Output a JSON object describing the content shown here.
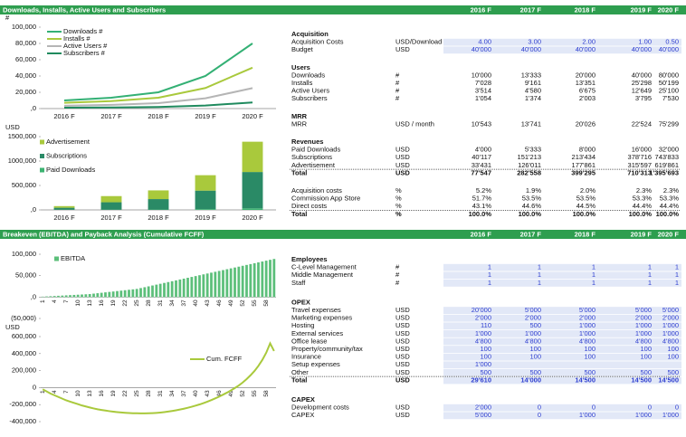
{
  "header": {
    "title": "Downloads, Installs, Active Users and Subscribers",
    "years": [
      "2016 F",
      "2017 F",
      "2018 F",
      "2019 F",
      "2020 F"
    ]
  },
  "bottom_header": {
    "title": "Breakeven (EBITDA) and Payback Analysis (Cumulative FCFF)",
    "years": [
      "2016 F",
      "2017 F",
      "2018 F",
      "2019 F",
      "2020 F"
    ]
  },
  "chart_data": [
    {
      "type": "line",
      "ylabel": "#",
      "categories": [
        "2016 F",
        "2017 F",
        "2018 F",
        "2019 F",
        "2020 F"
      ],
      "series": [
        {
          "name": "Downloads #",
          "color": "#33b074",
          "values": [
            10000,
            13333,
            20000,
            40000,
            80000
          ]
        },
        {
          "name": "Installs #",
          "color": "#a9c93c",
          "values": [
            7028,
            9161,
            13351,
            25298,
            50199
          ]
        },
        {
          "name": "Active Users #",
          "color": "#b5b5b5",
          "values": [
            3514,
            4580,
            6675,
            12649,
            25100
          ]
        },
        {
          "name": "Subscribers #",
          "color": "#1f8a5e",
          "values": [
            1054,
            1374,
            2003,
            3795,
            7530
          ]
        }
      ],
      "ylim": [
        0,
        100000
      ],
      "yticks": [
        {
          "value": 0,
          "label": ",0"
        },
        {
          "value": 20000,
          "label": "20,000"
        },
        {
          "value": 40000,
          "label": "40,000"
        },
        {
          "value": 60000,
          "label": "60,000"
        },
        {
          "value": 80000,
          "label": "80,000"
        },
        {
          "value": 100000,
          "label": "100,000"
        }
      ],
      "grid": false,
      "legend": "upper left"
    },
    {
      "type": "stacked_bar",
      "ylabel": "USD",
      "categories": [
        "2016 F",
        "2017 F",
        "2018 F",
        "2019 F",
        "2020 F"
      ],
      "series": [
        {
          "name": "Advertisement",
          "color": "#a9c93c",
          "values": [
            33431,
            126011,
            177861,
            315597,
            619861
          ]
        },
        {
          "name": "Subscriptions",
          "color": "#2a8a66",
          "values": [
            40117,
            151213,
            213434,
            378716,
            743833
          ]
        },
        {
          "name": "Paid Downloads",
          "color": "#3cb371",
          "values": [
            4000,
            5333,
            8000,
            16000,
            32000
          ]
        }
      ],
      "ylim": [
        0,
        1500000
      ],
      "yticks": [
        {
          "value": 0,
          "label": ",0"
        },
        {
          "value": 500000,
          "label": "500,000"
        },
        {
          "value": 1000000,
          "label": "1000,000"
        },
        {
          "value": 1500000,
          "label": "1500,000"
        }
      ],
      "grid": false,
      "legend": "upper left"
    },
    {
      "type": "bar",
      "categories": [
        "1",
        null,
        null,
        "4",
        null,
        null,
        "7",
        null,
        null,
        "10",
        null,
        null,
        "13",
        null,
        null,
        "16",
        null,
        null,
        "19",
        null,
        null,
        "22",
        null,
        null,
        "25",
        null,
        null,
        "28",
        null,
        null,
        "31",
        null,
        null,
        "34",
        null,
        null,
        "37",
        null,
        null,
        "40",
        null,
        null,
        "43",
        null,
        null,
        "46",
        null,
        null,
        "49",
        null,
        null,
        "52",
        null,
        null,
        "55",
        null,
        null,
        "58",
        null,
        null
      ],
      "series": [
        {
          "name": "EBITDA",
          "color": "#5cbf7a",
          "values": [
            1000,
            1500,
            2000,
            2500,
            3000,
            3500,
            4000,
            4500,
            5000,
            5500,
            6000,
            6500,
            7000,
            8000,
            9000,
            10000,
            11000,
            12000,
            13000,
            14000,
            15000,
            16000,
            17000,
            18000,
            19000,
            21000,
            23000,
            25000,
            27000,
            29000,
            31000,
            33000,
            35000,
            37000,
            39000,
            41000,
            43000,
            45000,
            47000,
            49000,
            51000,
            53000,
            55000,
            57000,
            59000,
            61000,
            63000,
            65000,
            67000,
            69000,
            71000,
            73000,
            75000,
            77000,
            79000,
            81000,
            83000,
            85000,
            87000,
            89000
          ]
        }
      ],
      "ylim": [
        -50000,
        100000
      ],
      "yticks": [
        {
          "value": -50000,
          "label": "(50,000)"
        },
        {
          "value": 0,
          "label": ",0"
        },
        {
          "value": 50000,
          "label": "50,000"
        },
        {
          "value": 100000,
          "label": "100,000"
        }
      ],
      "grid": false,
      "legend": "upper left"
    },
    {
      "type": "line",
      "ylabel": "USD",
      "categories": [
        "1",
        null,
        null,
        "4",
        null,
        null,
        "7",
        null,
        null,
        "10",
        null,
        null,
        "13",
        null,
        null,
        "16",
        null,
        null,
        "19",
        null,
        null,
        "22",
        null,
        null,
        "25",
        null,
        null,
        "28",
        null,
        null,
        "31",
        null,
        null,
        "34",
        null,
        null,
        "37",
        null,
        null,
        "40",
        null,
        null,
        "43",
        null,
        null,
        "46",
        null,
        null,
        "49",
        null,
        null,
        "52",
        null,
        null,
        "55",
        null,
        null,
        "58",
        null,
        null
      ],
      "series": [
        {
          "name": "Cum. FCFF",
          "color": "#a9c93c",
          "values": [
            -20000,
            -45000,
            -70000,
            -90000,
            -110000,
            -130000,
            -150000,
            -165000,
            -180000,
            -195000,
            -210000,
            -222000,
            -234000,
            -245000,
            -255000,
            -263000,
            -270000,
            -277000,
            -283000,
            -288000,
            -292000,
            -296000,
            -299000,
            -301000,
            -302000,
            -303000,
            -303000,
            -302000,
            -300000,
            -297000,
            -293000,
            -288000,
            -282000,
            -275000,
            -267000,
            -258000,
            -248000,
            -237000,
            -225000,
            -212000,
            -198000,
            -182000,
            -165000,
            -147000,
            -127000,
            -106000,
            -83000,
            -59000,
            -33000,
            -5000,
            25000,
            60000,
            100000,
            145000,
            195000,
            255000,
            325000,
            410000,
            520000,
            430000
          ]
        }
      ],
      "ylim": [
        -400000,
        600000
      ],
      "yticks": [
        {
          "value": -400000,
          "label": "-400,000"
        },
        {
          "value": -200000,
          "label": "-200,000"
        },
        0,
        {
          "value": 200000,
          "label": "200,000"
        },
        {
          "value": 400000,
          "label": "400,000"
        },
        {
          "value": 600000,
          "label": "600,000"
        }
      ],
      "grid": false,
      "legend": "center"
    }
  ],
  "top_table": {
    "sections": [
      {
        "title": "Acquisition",
        "input": true,
        "rows": [
          [
            "Acquisition Costs",
            "USD/Download",
            "4.00",
            "3.00",
            "2.00",
            "1.00",
            "0.50"
          ],
          [
            "Budget",
            "USD",
            "40'000",
            "40'000",
            "40'000",
            "40'000",
            "40'000"
          ]
        ]
      },
      {
        "title": "Users",
        "rows": [
          [
            "Downloads",
            "#",
            "10'000",
            "13'333",
            "20'000",
            "40'000",
            "80'000"
          ],
          [
            "Installs",
            "#",
            "7'028",
            "9'161",
            "13'351",
            "25'298",
            "50'199"
          ],
          [
            "Active Users",
            "#",
            "3'514",
            "4'580",
            "6'675",
            "12'649",
            "25'100"
          ],
          [
            "Subscribers",
            "#",
            "1'054",
            "1'374",
            "2'003",
            "3'795",
            "7'530"
          ]
        ]
      },
      {
        "title": "MRR",
        "rows": [
          [
            "MRR",
            "USD / month",
            "10'543",
            "13'741",
            "20'026",
            "22'524",
            "75'299"
          ]
        ]
      },
      {
        "title": "Revenues",
        "total_last": true,
        "rows": [
          [
            "Paid Downloads",
            "USD",
            "4'000",
            "5'333",
            "8'000",
            "16'000",
            "32'000"
          ],
          [
            "Subscriptions",
            "USD",
            "40'117",
            "151'213",
            "213'434",
            "378'716",
            "743'833"
          ],
          [
            "Advertisement",
            "USD",
            "33'431",
            "126'011",
            "177'861",
            "315'597",
            "619'861"
          ],
          [
            "Total",
            "USD",
            "77'547",
            "282'558",
            "399'295",
            "710'313",
            "1'395'693"
          ]
        ]
      },
      {
        "total_last": true,
        "rows": [
          [
            "Acquisition costs",
            "%",
            "5.2%",
            "1.9%",
            "2.0%",
            "2.3%",
            "2.3%"
          ],
          [
            "Commission App Store",
            "%",
            "51.7%",
            "53.5%",
            "53.5%",
            "53.3%",
            "53.3%"
          ],
          [
            "Direct costs",
            "%",
            "43.1%",
            "44.6%",
            "44.5%",
            "44.4%",
            "44.4%"
          ],
          [
            "Total",
            "%",
            "100.0%",
            "100.0%",
            "100.0%",
            "100.0%",
            "100.0%"
          ]
        ]
      }
    ]
  },
  "bottom_table": {
    "sections": [
      {
        "title": "Employees",
        "input": true,
        "rows": [
          [
            "C-Level Management",
            "#",
            "1",
            "1",
            "1",
            "1",
            "1"
          ],
          [
            "Middle Management",
            "#",
            "1",
            "1",
            "1",
            "1",
            "1"
          ],
          [
            "Staff",
            "#",
            "1",
            "1",
            "1",
            "1",
            "1"
          ]
        ]
      },
      {
        "title": "OPEX",
        "input": true,
        "total_last": true,
        "rows": [
          [
            "Travel expenses",
            "USD",
            "20'000",
            "5'000",
            "5'000",
            "5'000",
            "5'000"
          ],
          [
            "Marketing expenses",
            "USD",
            "2'000",
            "2'000",
            "2'000",
            "2'000",
            "2'000"
          ],
          [
            "Hosting",
            "USD",
            "110",
            "500",
            "1'000",
            "1'000",
            "1'000"
          ],
          [
            "External services",
            "USD",
            "1'000",
            "1'000",
            "1'000",
            "1'000",
            "1'000"
          ],
          [
            "Office lease",
            "USD",
            "4'800",
            "4'800",
            "4'800",
            "4'800",
            "4'800"
          ],
          [
            "Property/community/tax",
            "USD",
            "100",
            "100",
            "100",
            "100",
            "100"
          ],
          [
            "Insurance",
            "USD",
            "100",
            "100",
            "100",
            "100",
            "100"
          ],
          [
            "Setup expenses",
            "USD",
            "1'000"
          ],
          [
            "Other",
            "USD",
            "500",
            "500",
            "500",
            "500",
            "500"
          ],
          [
            "Total",
            "USD",
            "29'610",
            "14'000",
            "14'500",
            "14'500",
            "14'500"
          ]
        ]
      },
      {
        "title": "CAPEX",
        "input": true,
        "rows": [
          [
            "Development costs",
            "USD",
            "2'000",
            "0",
            "0",
            "0",
            "0"
          ],
          [
            "CAPEX",
            "USD",
            "5'000",
            "0",
            "1'000",
            "1'000",
            "1'000"
          ]
        ]
      }
    ]
  }
}
